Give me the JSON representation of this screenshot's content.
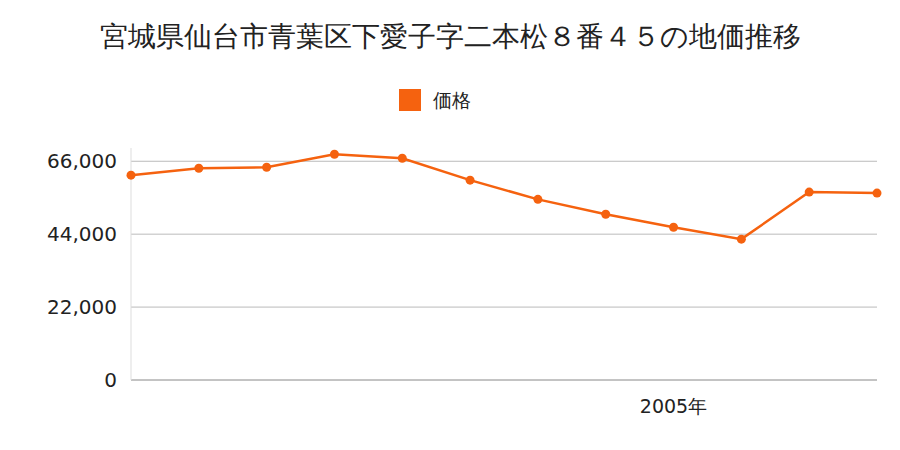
{
  "chart_data": {
    "type": "line",
    "title": "宮城県仙台市青葉区下愛子字二本松８番４５の地価推移",
    "categories": [
      null,
      null,
      null,
      null,
      null,
      null,
      null,
      null,
      "2005年",
      null,
      null,
      null
    ],
    "series": [
      {
        "name": "価格",
        "color": "#f5620f",
        "marker": "circle",
        "values": [
          61800,
          63900,
          64200,
          68100,
          66900,
          60300,
          54500,
          50000,
          46100,
          42500,
          56700,
          56400
        ]
      }
    ],
    "ylim": [
      0,
      70000
    ],
    "yticks": [
      0,
      {
        "value": 22000,
        "label": "22,000"
      },
      {
        "value": 44000,
        "label": "44,000"
      },
      {
        "value": 66000,
        "label": "66,000"
      }
    ],
    "grid": true,
    "legend": "top"
  }
}
